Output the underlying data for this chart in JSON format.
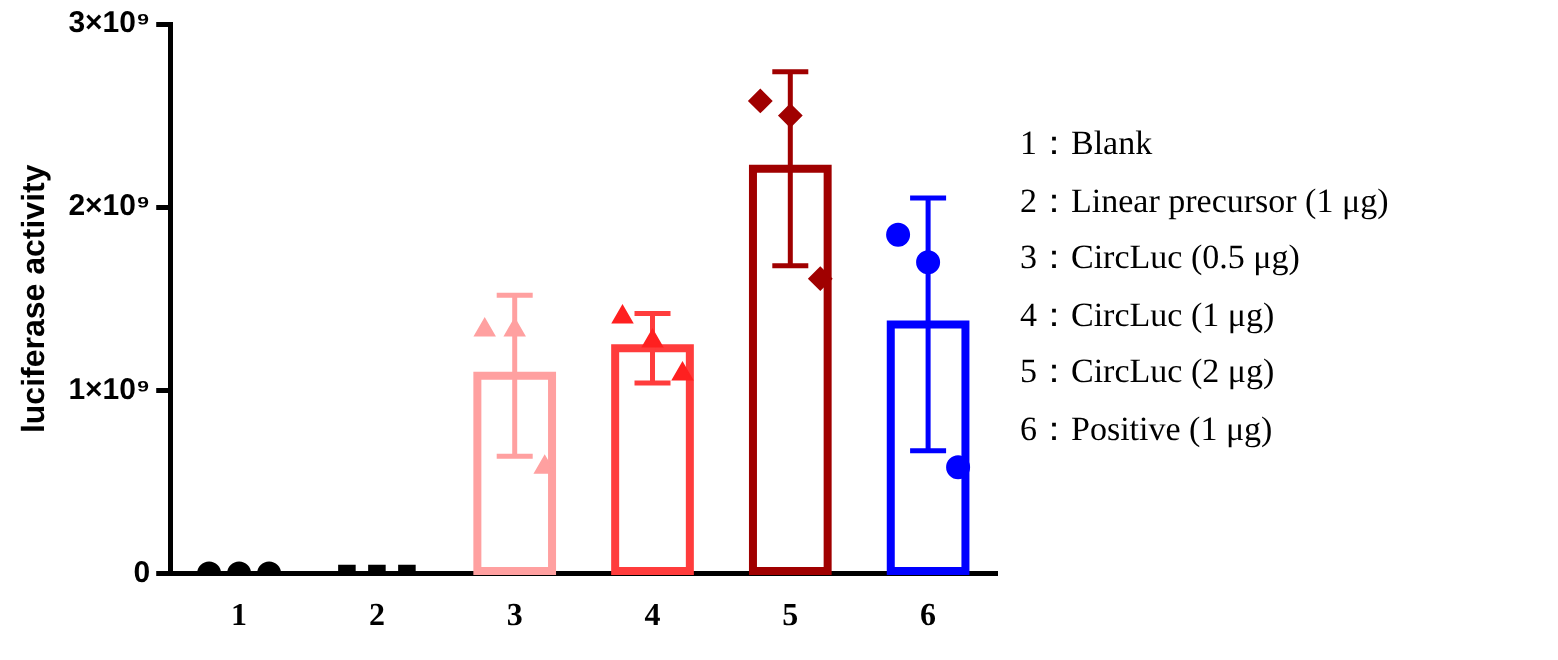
{
  "chart_data": {
    "type": "bar",
    "ylabel": "luciferase activity",
    "categories": [
      "1",
      "2",
      "3",
      "4",
      "5",
      "6"
    ],
    "ylim": [
      0,
      3000000000
    ],
    "yticks": [
      0,
      {
        "value": 1000000000,
        "label": "1×10⁹"
      },
      {
        "value": 2000000000,
        "label": "2×10⁹"
      },
      {
        "value": 3000000000,
        "label": "3×10⁹"
      }
    ],
    "grid": false,
    "legend": false,
    "series": [
      {
        "colors": [
          "#000000",
          "#000000",
          "#ffa0a0",
          "#ff3c3c",
          "#a00000",
          "#0000ff"
        ],
        "values": [
          0,
          0,
          1080000000,
          1230000000,
          2210000000,
          1360000000
        ],
        "errors": [
          null,
          null,
          440000000,
          190000000,
          530000000,
          690000000
        ]
      },
      {
        "type": "scatter",
        "color": "#000000",
        "marker": "circle",
        "x": [
          "1",
          "1",
          "1"
        ],
        "values": [
          0,
          0,
          0
        ]
      },
      {
        "type": "scatter",
        "color": "#000000",
        "marker": "square",
        "x": [
          "2",
          "2",
          "2"
        ],
        "values": [
          0,
          0,
          0
        ]
      },
      {
        "type": "scatter",
        "color": "#ffa0a0",
        "marker": "triangle",
        "x": [
          "3",
          "3",
          "3"
        ],
        "values": [
          1330000000,
          1330000000,
          580000000
        ]
      },
      {
        "type": "scatter",
        "color": "#ff2020",
        "marker": "triangle",
        "x": [
          "4",
          "4",
          "4"
        ],
        "values": [
          1400000000,
          1270000000,
          1090000000
        ]
      },
      {
        "type": "scatter",
        "color": "#a00000",
        "marker": "diamond",
        "x": [
          "5",
          "5",
          "5"
        ],
        "values": [
          2580000000,
          2500000000,
          1610000000
        ]
      },
      {
        "type": "scatter",
        "color": "#0000ff",
        "marker": "circle",
        "x": [
          "6",
          "6",
          "6"
        ],
        "values": [
          1850000000,
          1700000000,
          580000000
        ]
      }
    ],
    "annotations": [
      "1：Blank",
      "2：Linear precursor (1 μg)",
      "3：CircLuc (0.5 μg)",
      "4：CircLuc (1 μg)",
      "5：CircLuc (2 μg)",
      "6：Positive (1 μg)"
    ]
  }
}
